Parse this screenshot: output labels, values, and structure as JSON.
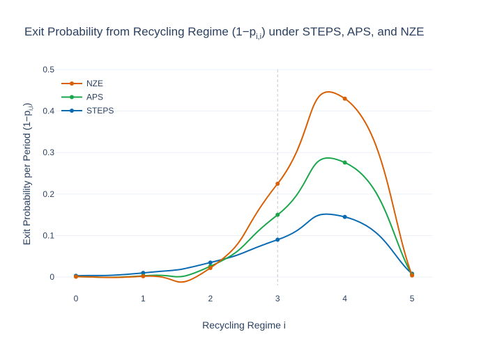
{
  "chart_data": {
    "type": "line",
    "title_main": "Exit Probability from Recycling Regime (1−p",
    "title_sub": "i,i",
    "title_tail": ") under STEPS, APS, and NZE",
    "xlabel": "Recycling Regime i",
    "ylabel_main": "Exit Probability per Period (1−p",
    "ylabel_sub": "i,i",
    "ylabel_tail": ")",
    "x": [
      0,
      1,
      2,
      3,
      4,
      5
    ],
    "xlim": [
      -0.3,
      5.3
    ],
    "ylim": [
      -0.02,
      0.5
    ],
    "x_ticks": [
      "0",
      "1",
      "2",
      "3",
      "4",
      "5"
    ],
    "y_ticks": [
      0,
      0.1,
      0.2,
      0.3,
      0.4,
      0.5
    ],
    "y_tick_labels": [
      "0",
      "0.1",
      "0.2",
      "0.3",
      "0.4",
      "0.5"
    ],
    "vline_x": 3,
    "legend_position": "top-left",
    "grid": true,
    "series": [
      {
        "name": "NZE",
        "color": "#d95f02",
        "values": [
          0.001,
          0.002,
          0.022,
          0.225,
          0.43,
          0.004
        ]
      },
      {
        "name": "APS",
        "color": "#1ba64b",
        "values": [
          0.001,
          0.003,
          0.026,
          0.15,
          0.276,
          0.006
        ]
      },
      {
        "name": "STEPS",
        "color": "#0a6bb2",
        "values": [
          0.003,
          0.01,
          0.035,
          0.09,
          0.145,
          0.008
        ]
      }
    ]
  }
}
